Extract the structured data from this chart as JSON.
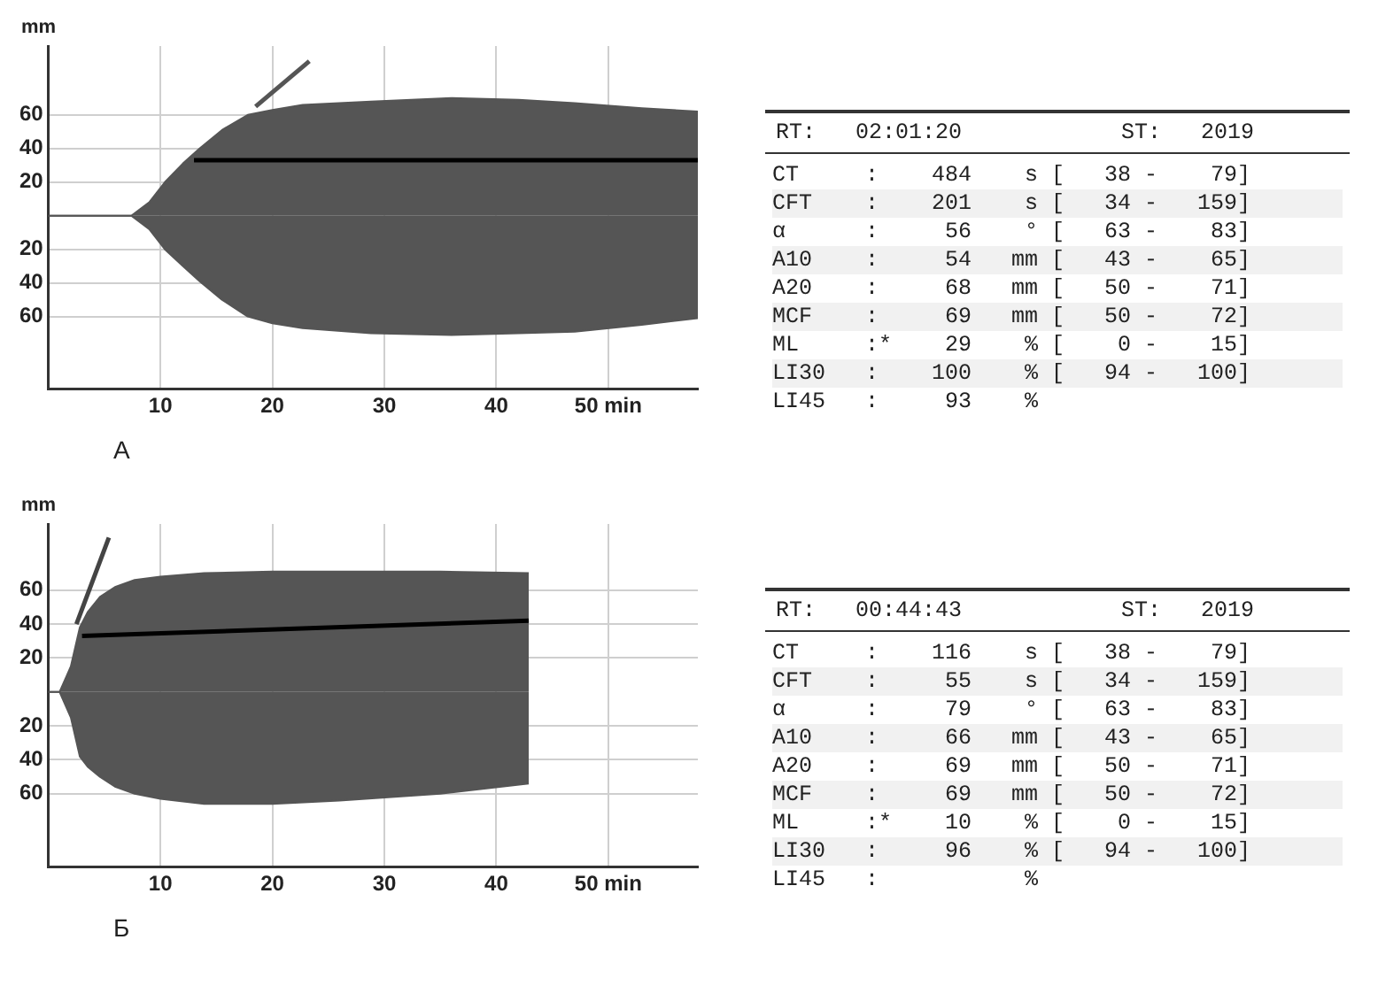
{
  "chart_data": [
    {
      "type": "area",
      "title": "А",
      "ylabel": "mm",
      "xlim": [
        0,
        58
      ],
      "ylim": [
        -103,
        101
      ],
      "xticks": [
        10,
        20,
        30,
        40,
        {
          "value": 50,
          "label": "50 min"
        }
      ],
      "yticks": [
        {
          "value": -60,
          "label": "60"
        },
        {
          "value": -40,
          "label": "40"
        },
        {
          "value": -20,
          "label": "20"
        },
        20,
        40,
        60
      ],
      "grid": true,
      "series": [
        {
          "color": "#555555",
          "x": [
            0,
            7.4,
            9,
            10.4,
            12,
            13.5,
            15.5,
            17.8,
            20,
            22.7,
            28.8,
            36,
            42,
            47,
            53,
            58
          ],
          "values": [
            0,
            0,
            8,
            20,
            31,
            40,
            51,
            60,
            63,
            66,
            68,
            70,
            69,
            67,
            64,
            62
          ]
        },
        {
          "color": "#555555",
          "x": [
            0,
            7.4,
            9,
            10.4,
            12,
            13.5,
            15.5,
            17.8,
            20,
            22.7,
            28.8,
            36,
            42,
            47,
            53,
            58
          ],
          "values": [
            0,
            0,
            -8,
            -20,
            -30,
            -39,
            -50,
            -60,
            -64,
            -67,
            -70,
            -71,
            -70,
            -69,
            -65,
            -61
          ]
        },
        {
          "type": "line",
          "color": "#555555",
          "x": [
            18.5,
            23.3
          ],
          "values": [
            65,
            92
          ]
        },
        {
          "type": "line",
          "color": "#000000",
          "x": [
            13,
            58
          ],
          "values": [
            33,
            33
          ]
        }
      ]
    },
    {
      "type": "other",
      "subtitle": "RT:   02:01:20            ST:   2019",
      "annotations": [
        "CT     :    484    s [   38 -    79]",
        "CFT    :    201    s [   34 -   159]",
        "α      :     56    ° [   63 -    83]",
        "A10    :     54   mm [   43 -    65]",
        "A20    :     68   mm [   50 -    71]",
        "MCF    :     69   mm [   50 -    72]",
        "ML     :*    29    % [    0 -    15]",
        "LI30   :    100    % [   94 -   100]",
        "LI45   :     93    %"
      ]
    },
    {
      "type": "area",
      "title": "Б",
      "ylabel": "mm",
      "xlim": [
        0,
        58
      ],
      "ylim": [
        -103,
        99
      ],
      "xticks": [
        10,
        20,
        30,
        40,
        {
          "value": 50,
          "label": "50 min"
        }
      ],
      "yticks": [
        {
          "value": -60,
          "label": "60"
        },
        {
          "value": -40,
          "label": "40"
        },
        {
          "value": -20,
          "label": "20"
        },
        20,
        40,
        60
      ],
      "grid": true,
      "series": [
        {
          "color": "#555555",
          "x": [
            0,
            1,
            2,
            2.8,
            3.5,
            4.6,
            6,
            7.7,
            10,
            13.9,
            20,
            26,
            35,
            42.9
          ],
          "values": [
            0,
            0,
            15,
            38,
            47,
            56,
            62,
            66,
            68,
            70,
            71,
            71,
            71,
            70
          ]
        },
        {
          "color": "#555555",
          "x": [
            0,
            1,
            2,
            2.8,
            3.5,
            4.6,
            6,
            7.7,
            10,
            13.9,
            20,
            26,
            35,
            42.9
          ],
          "values": [
            0,
            0,
            -15,
            -38,
            -44,
            -50,
            -56,
            -60,
            -63,
            -66,
            -66,
            -64,
            -60,
            -54
          ]
        },
        {
          "type": "line",
          "color": "#444444",
          "x": [
            2.5,
            5.4
          ],
          "values": [
            40,
            91
          ]
        },
        {
          "type": "line",
          "color": "#000000",
          "x": [
            3,
            42.9
          ],
          "values": [
            33,
            42
          ]
        }
      ]
    },
    {
      "type": "other",
      "subtitle": "RT:   00:44:43            ST:   2019",
      "annotations": [
        "CT     :    116    s [   38 -    79]",
        "CFT    :     55    s [   34 -   159]",
        "α      :     79    ° [   63 -    83]",
        "A10    :     66   mm [   43 -    65]",
        "A20    :     69   mm [   50 -    71]",
        "MCF    :     69   mm [   50 -    72]",
        "ML     :*    10    % [    0 -    15]",
        "LI30   :     96    % [   94 -   100]",
        "LI45   :           %"
      ]
    }
  ]
}
